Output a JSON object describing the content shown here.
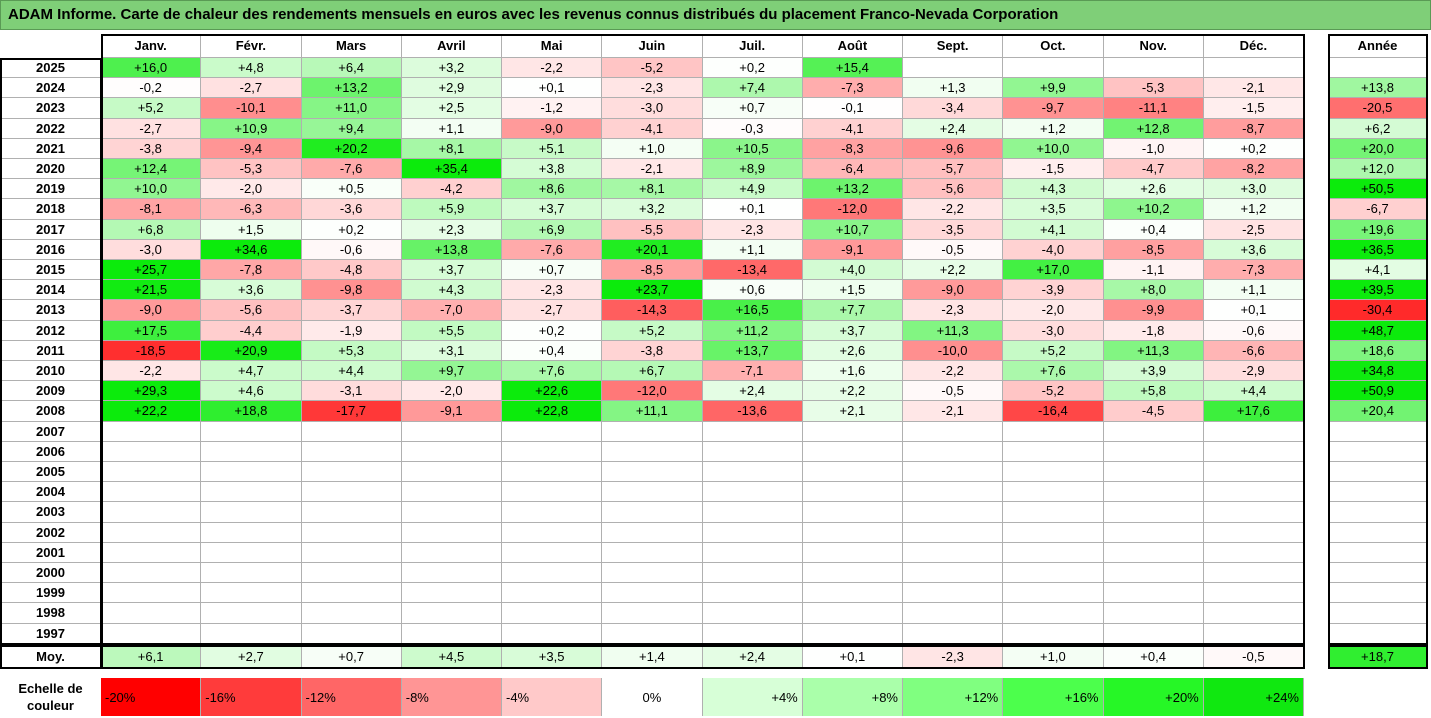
{
  "title": "ADAM Informe. Carte de chaleur des rendements mensuels en euros avec les revenus connus distribués du placement Franco-Nevada Corporation",
  "chart_data": {
    "type": "heatmap",
    "months": [
      "Janv.",
      "Févr.",
      "Mars",
      "Avril",
      "Mai",
      "Juin",
      "Juil.",
      "Août",
      "Sept.",
      "Oct.",
      "Nov.",
      "Déc."
    ],
    "year_header": "Année",
    "average_label": "Moy.",
    "rows": [
      {
        "year": "2025",
        "values": [
          16.0,
          4.8,
          6.4,
          3.2,
          -2.2,
          -5.2,
          0.2,
          15.4,
          null,
          null,
          null,
          null
        ],
        "annual": null
      },
      {
        "year": "2024",
        "values": [
          -0.2,
          -2.7,
          13.2,
          2.9,
          0.1,
          -2.3,
          7.4,
          -7.3,
          1.3,
          9.9,
          -5.3,
          -2.1
        ],
        "annual": 13.8
      },
      {
        "year": "2023",
        "values": [
          5.2,
          -10.1,
          11.0,
          2.5,
          -1.2,
          -3.0,
          0.7,
          -0.1,
          -3.4,
          -9.7,
          -11.1,
          -1.5
        ],
        "annual": -20.5
      },
      {
        "year": "2022",
        "values": [
          -2.7,
          10.9,
          9.4,
          1.1,
          -9.0,
          -4.1,
          -0.3,
          -4.1,
          2.4,
          1.2,
          12.8,
          -8.7
        ],
        "annual": 6.2
      },
      {
        "year": "2021",
        "values": [
          -3.8,
          -9.4,
          20.2,
          8.1,
          5.1,
          1.0,
          10.5,
          -8.3,
          -9.6,
          10.0,
          -1.0,
          0.2
        ],
        "annual": 20.0
      },
      {
        "year": "2020",
        "values": [
          12.4,
          -5.3,
          -7.6,
          35.4,
          3.8,
          -2.1,
          8.9,
          -6.4,
          -5.7,
          -1.5,
          -4.7,
          -8.2
        ],
        "annual": 12.0
      },
      {
        "year": "2019",
        "values": [
          10.0,
          -2.0,
          0.5,
          -4.2,
          8.6,
          8.1,
          4.9,
          13.2,
          -5.6,
          4.3,
          2.6,
          3.0
        ],
        "annual": 50.5
      },
      {
        "year": "2018",
        "values": [
          -8.1,
          -6.3,
          -3.6,
          5.9,
          3.7,
          3.2,
          0.1,
          -12.0,
          -2.2,
          3.5,
          10.2,
          1.2
        ],
        "annual": -6.7
      },
      {
        "year": "2017",
        "values": [
          6.8,
          1.5,
          0.2,
          2.3,
          6.9,
          -5.5,
          -2.3,
          10.7,
          -3.5,
          4.1,
          0.4,
          -2.5
        ],
        "annual": 19.6
      },
      {
        "year": "2016",
        "values": [
          -3.0,
          34.6,
          -0.6,
          13.8,
          -7.6,
          20.1,
          1.1,
          -9.1,
          -0.5,
          -4.0,
          -8.5,
          3.6
        ],
        "annual": 36.5
      },
      {
        "year": "2015",
        "values": [
          25.7,
          -7.8,
          -4.8,
          3.7,
          0.7,
          -8.5,
          -13.4,
          4.0,
          2.2,
          17.0,
          -1.1,
          -7.3
        ],
        "annual": 4.1
      },
      {
        "year": "2014",
        "values": [
          21.5,
          3.6,
          -9.8,
          4.3,
          -2.3,
          23.7,
          0.6,
          1.5,
          -9.0,
          -3.9,
          8.0,
          1.1
        ],
        "annual": 39.5
      },
      {
        "year": "2013",
        "values": [
          -9.0,
          -5.6,
          -3.7,
          -7.0,
          -2.7,
          -14.3,
          16.5,
          7.7,
          -2.3,
          -2.0,
          -9.9,
          0.1
        ],
        "annual": -30.4
      },
      {
        "year": "2012",
        "values": [
          17.5,
          -4.4,
          -1.9,
          5.5,
          0.2,
          5.2,
          11.2,
          3.7,
          11.3,
          -3.0,
          -1.8,
          -0.6
        ],
        "annual": 48.7
      },
      {
        "year": "2011",
        "values": [
          -18.5,
          20.9,
          5.3,
          3.1,
          0.4,
          -3.8,
          13.7,
          2.6,
          -10.0,
          5.2,
          11.3,
          -6.6
        ],
        "annual": 18.6
      },
      {
        "year": "2010",
        "values": [
          -2.2,
          4.7,
          4.4,
          9.7,
          7.6,
          6.7,
          -7.1,
          1.6,
          -2.2,
          7.6,
          3.9,
          -2.9
        ],
        "annual": 34.8
      },
      {
        "year": "2009",
        "values": [
          29.3,
          4.6,
          -3.1,
          -2.0,
          22.6,
          -12.0,
          2.4,
          2.2,
          -0.5,
          -5.2,
          5.8,
          4.4
        ],
        "annual": 50.9
      },
      {
        "year": "2008",
        "values": [
          22.2,
          18.8,
          -17.7,
          -9.1,
          22.8,
          11.1,
          -13.6,
          2.1,
          -2.1,
          -16.4,
          -4.5,
          17.6
        ],
        "annual": 20.4
      },
      {
        "year": "2007",
        "values": [
          null,
          null,
          null,
          null,
          null,
          null,
          null,
          null,
          null,
          null,
          null,
          null
        ],
        "annual": null
      },
      {
        "year": "2006",
        "values": [
          null,
          null,
          null,
          null,
          null,
          null,
          null,
          null,
          null,
          null,
          null,
          null
        ],
        "annual": null
      },
      {
        "year": "2005",
        "values": [
          null,
          null,
          null,
          null,
          null,
          null,
          null,
          null,
          null,
          null,
          null,
          null
        ],
        "annual": null
      },
      {
        "year": "2004",
        "values": [
          null,
          null,
          null,
          null,
          null,
          null,
          null,
          null,
          null,
          null,
          null,
          null
        ],
        "annual": null
      },
      {
        "year": "2003",
        "values": [
          null,
          null,
          null,
          null,
          null,
          null,
          null,
          null,
          null,
          null,
          null,
          null
        ],
        "annual": null
      },
      {
        "year": "2002",
        "values": [
          null,
          null,
          null,
          null,
          null,
          null,
          null,
          null,
          null,
          null,
          null,
          null
        ],
        "annual": null
      },
      {
        "year": "2001",
        "values": [
          null,
          null,
          null,
          null,
          null,
          null,
          null,
          null,
          null,
          null,
          null,
          null
        ],
        "annual": null
      },
      {
        "year": "2000",
        "values": [
          null,
          null,
          null,
          null,
          null,
          null,
          null,
          null,
          null,
          null,
          null,
          null
        ],
        "annual": null
      },
      {
        "year": "1999",
        "values": [
          null,
          null,
          null,
          null,
          null,
          null,
          null,
          null,
          null,
          null,
          null,
          null
        ],
        "annual": null
      },
      {
        "year": "1998",
        "values": [
          null,
          null,
          null,
          null,
          null,
          null,
          null,
          null,
          null,
          null,
          null,
          null
        ],
        "annual": null
      },
      {
        "year": "1997",
        "values": [
          null,
          null,
          null,
          null,
          null,
          null,
          null,
          null,
          null,
          null,
          null,
          null
        ],
        "annual": null
      }
    ],
    "averages": [
      6.1,
      2.7,
      0.7,
      4.5,
      3.5,
      1.4,
      2.4,
      0.1,
      -2.3,
      1.0,
      0.4,
      -0.5
    ],
    "average_annual": 18.7
  },
  "scale": {
    "label": "Echelle de couleur",
    "stops": [
      {
        "label": "-20%",
        "value": -20,
        "color": "#ff0000",
        "align": "left"
      },
      {
        "label": "-16%",
        "value": -16,
        "color": "#ff3b3b",
        "align": "left"
      },
      {
        "label": "-12%",
        "value": -12,
        "color": "#ff6666",
        "align": "left"
      },
      {
        "label": "-8%",
        "value": -8,
        "color": "#ff9595",
        "align": "left"
      },
      {
        "label": "-4%",
        "value": -4,
        "color": "#ffc9c9",
        "align": "left"
      },
      {
        "label": "0%",
        "value": 0,
        "color": "#ffffff",
        "align": "center"
      },
      {
        "label": "+4%",
        "value": 4,
        "color": "#d7ffd7",
        "align": "right"
      },
      {
        "label": "+8%",
        "value": 8,
        "color": "#aaffaa",
        "align": "right"
      },
      {
        "label": "+12%",
        "value": 12,
        "color": "#80ff80",
        "align": "right"
      },
      {
        "label": "+16%",
        "value": 16,
        "color": "#4cff4c",
        "align": "right"
      },
      {
        "label": "+20%",
        "value": 20,
        "color": "#26f726",
        "align": "right"
      },
      {
        "label": "+24%",
        "value": 24,
        "color": "#10e810",
        "align": "right"
      }
    ]
  }
}
